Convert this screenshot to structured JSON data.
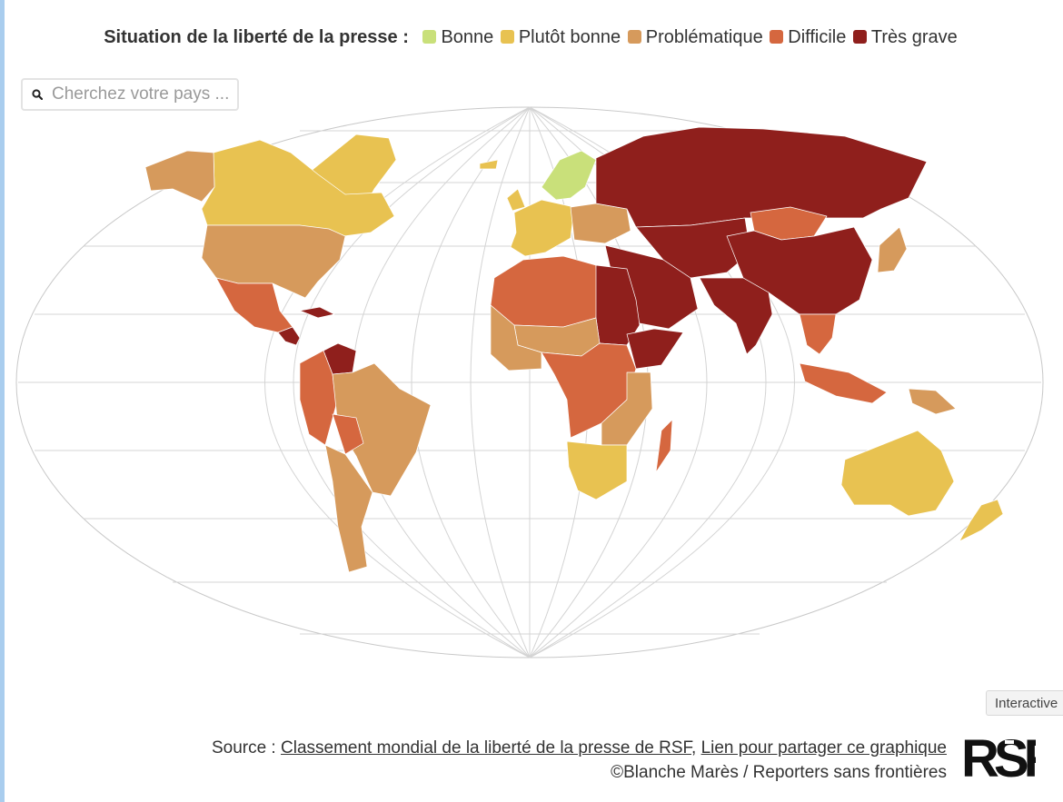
{
  "legend": {
    "title": "Situation de la liberté de la presse :",
    "items": [
      {
        "label": "Bonne",
        "color": "#c9e07a"
      },
      {
        "label": "Plutôt bonne",
        "color": "#e8c251"
      },
      {
        "label": "Problématique",
        "color": "#d69a5c"
      },
      {
        "label": "Difficile",
        "color": "#d5673f"
      },
      {
        "label": "Très grave",
        "color": "#8f1f1c"
      }
    ]
  },
  "search": {
    "placeholder": "Cherchez votre pays ..."
  },
  "badge": {
    "label": "Interactive"
  },
  "footer": {
    "source_prefix": "Source : ",
    "source_link": "Classement mondial de la liberté de la presse de RSF",
    "separator": ", ",
    "share_link": "Lien pour partager ce graphique",
    "credit": "©Blanche Marès / Reporters sans frontières"
  },
  "logo": {
    "text": "RSF"
  },
  "colors": {
    "ocean": "#ffffff",
    "graticule": "#d4d4d4",
    "outline": "#c8c8c8"
  },
  "map_data": {
    "projection": "Robinson",
    "categories": [
      "Bonne",
      "Plutôt bonne",
      "Problématique",
      "Difficile",
      "Très grave"
    ],
    "regions": [
      {
        "name": "canada",
        "category": "Plutôt bonne"
      },
      {
        "name": "greenland",
        "category": "Plutôt bonne"
      },
      {
        "name": "alaska",
        "category": "Problématique"
      },
      {
        "name": "usa",
        "category": "Problématique"
      },
      {
        "name": "mexico",
        "category": "Difficile"
      },
      {
        "name": "central-america",
        "category": "Très grave"
      },
      {
        "name": "caribbean",
        "category": "Très grave"
      },
      {
        "name": "venezuela",
        "category": "Très grave"
      },
      {
        "name": "colombia-peru",
        "category": "Difficile"
      },
      {
        "name": "brazil",
        "category": "Problématique"
      },
      {
        "name": "bolivia",
        "category": "Difficile"
      },
      {
        "name": "southern-cone",
        "category": "Problématique"
      },
      {
        "name": "iceland",
        "category": "Plutôt bonne"
      },
      {
        "name": "uk-ireland",
        "category": "Plutôt bonne"
      },
      {
        "name": "nordics",
        "category": "Bonne"
      },
      {
        "name": "west-europe",
        "category": "Plutôt bonne"
      },
      {
        "name": "east-europe",
        "category": "Problématique"
      },
      {
        "name": "russia",
        "category": "Très grave"
      },
      {
        "name": "central-asia",
        "category": "Très grave"
      },
      {
        "name": "china",
        "category": "Très grave"
      },
      {
        "name": "mongolia",
        "category": "Difficile"
      },
      {
        "name": "japan",
        "category": "Problématique"
      },
      {
        "name": "middle-east",
        "category": "Très grave"
      },
      {
        "name": "india",
        "category": "Très grave"
      },
      {
        "name": "southeast-asia",
        "category": "Difficile"
      },
      {
        "name": "indonesia",
        "category": "Difficile"
      },
      {
        "name": "north-africa",
        "category": "Difficile"
      },
      {
        "name": "sahel",
        "category": "Problématique"
      },
      {
        "name": "egypt-sudan",
        "category": "Très grave"
      },
      {
        "name": "horn-of-africa",
        "category": "Très grave"
      },
      {
        "name": "west-africa",
        "category": "Problématique"
      },
      {
        "name": "central-africa",
        "category": "Difficile"
      },
      {
        "name": "east-africa",
        "category": "Problématique"
      },
      {
        "name": "southern-africa",
        "category": "Plutôt bonne"
      },
      {
        "name": "madagascar",
        "category": "Difficile"
      },
      {
        "name": "australia",
        "category": "Plutôt bonne"
      },
      {
        "name": "new-zealand",
        "category": "Plutôt bonne"
      },
      {
        "name": "papua-new-guinea",
        "category": "Problématique"
      }
    ]
  }
}
